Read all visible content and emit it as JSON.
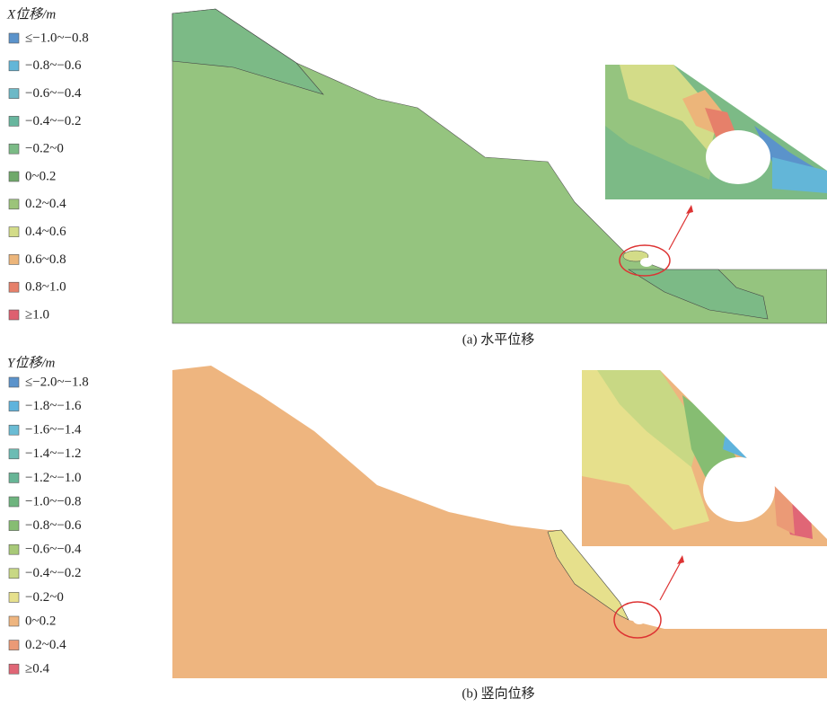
{
  "panels": [
    {
      "legend_title": "X位移/m",
      "caption": "(a) 水平位移",
      "legend": [
        {
          "label": "≤−1.0~−0.8",
          "color": "#5b93cb"
        },
        {
          "label": "−0.8~−0.6",
          "color": "#63b6d8"
        },
        {
          "label": "−0.6~−0.4",
          "color": "#6db9c7"
        },
        {
          "label": "−0.4~−0.2",
          "color": "#68b69e"
        },
        {
          "label": "−0.2~0",
          "color": "#7bbb86"
        },
        {
          "label": "0~0.2",
          "color": "#70a96b"
        },
        {
          "label": "0.2~0.4",
          "color": "#9cc47a"
        },
        {
          "label": "0.4~0.6",
          "color": "#d3dc88"
        },
        {
          "label": "0.6~0.8",
          "color": "#ecb57a"
        },
        {
          "label": "0.8~1.0",
          "color": "#e6806a"
        },
        {
          "label": "≥1.0",
          "color": "#de6070"
        }
      ]
    },
    {
      "legend_title": "Y位移/m",
      "caption": "(b) 竖向位移",
      "legend": [
        {
          "label": "≤−2.0~−1.8",
          "color": "#5b93cb"
        },
        {
          "label": "−1.8~−1.6",
          "color": "#5fb3dc"
        },
        {
          "label": "−1.6~−1.4",
          "color": "#6abcd4"
        },
        {
          "label": "−1.4~−1.2",
          "color": "#6cbcb4"
        },
        {
          "label": "−1.2~−1.0",
          "color": "#67b596"
        },
        {
          "label": "−1.0~−0.8",
          "color": "#6eb47e"
        },
        {
          "label": "−0.8~−0.6",
          "color": "#86bd72"
        },
        {
          "label": "−0.6~−0.4",
          "color": "#a8c978"
        },
        {
          "label": "−0.4~−0.2",
          "color": "#c8d884"
        },
        {
          "label": "−0.2~0",
          "color": "#e6e08c"
        },
        {
          "label": "0~0.2",
          "color": "#eeb57f"
        },
        {
          "label": "0.2~0.4",
          "color": "#eb9a76"
        },
        {
          "label": "≥0.4",
          "color": "#e06676"
        }
      ]
    }
  ]
}
